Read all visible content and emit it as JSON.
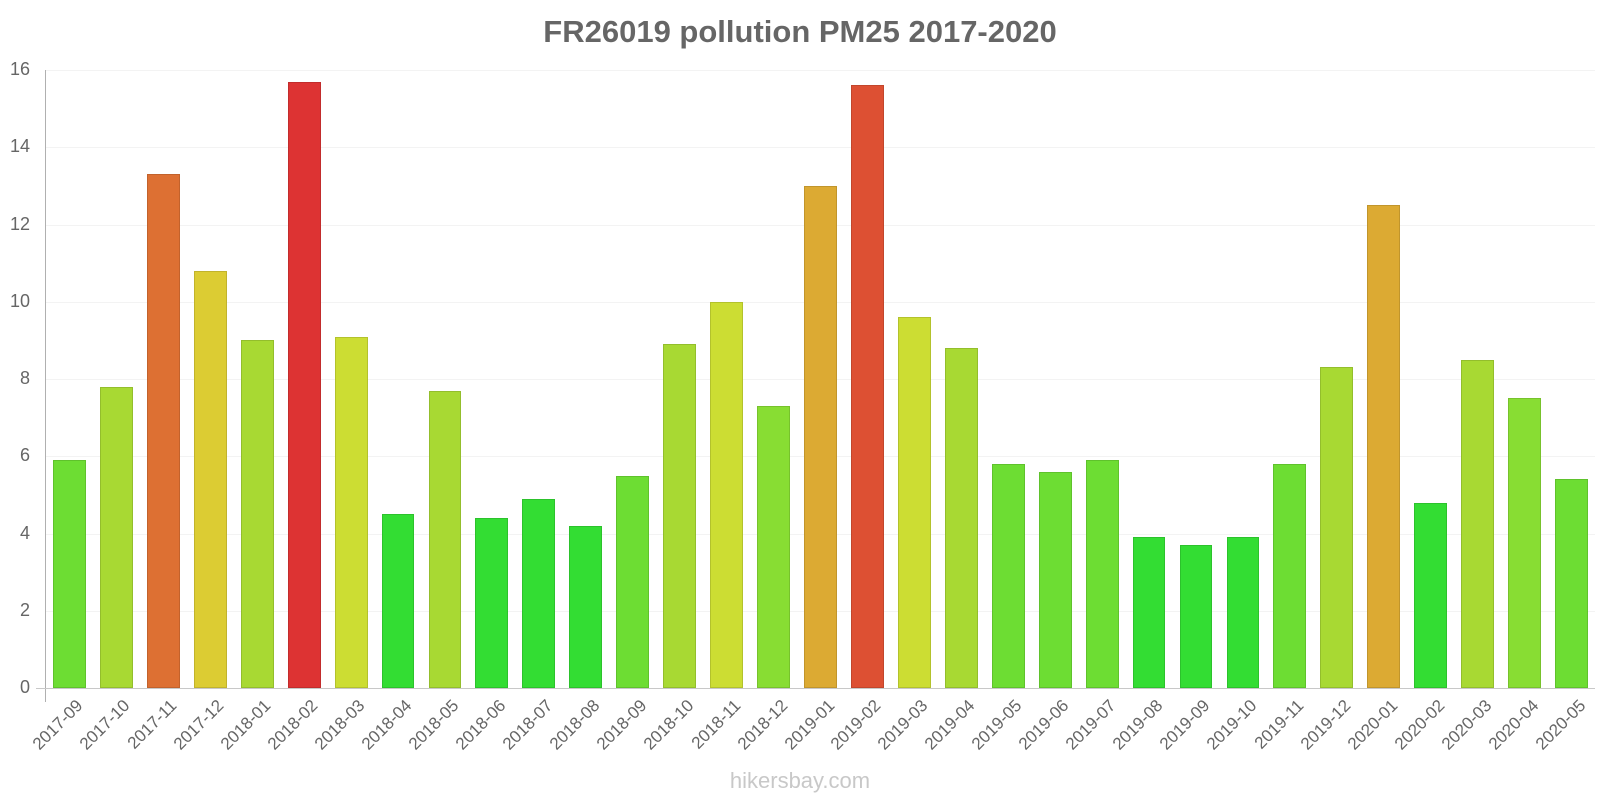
{
  "title": "FR26019 pollution PM25 2017-2020",
  "watermark": "hikersbay.com",
  "y_ticks": [
    "0",
    "2",
    "4",
    "6",
    "8",
    "10",
    "12",
    "14",
    "16"
  ],
  "chart_data": {
    "type": "bar",
    "title": "FR26019 pollution PM25 2017-2020",
    "xlabel": "",
    "ylabel": "",
    "ylim": [
      0,
      16
    ],
    "grid": true,
    "legend": null,
    "categories": [
      "2017-09",
      "2017-10",
      "2017-11",
      "2017-12",
      "2018-01",
      "2018-02",
      "2018-03",
      "2018-04",
      "2018-05",
      "2018-06",
      "2018-07",
      "2018-08",
      "2018-09",
      "2018-10",
      "2018-11",
      "2018-12",
      "2019-01",
      "2019-02",
      "2019-03",
      "2019-04",
      "2019-05",
      "2019-06",
      "2019-07",
      "2019-08",
      "2019-09",
      "2019-10",
      "2019-11",
      "2019-12",
      "2020-01",
      "2020-02",
      "2020-03",
      "2020-04",
      "2020-05"
    ],
    "values": [
      5.9,
      7.8,
      13.3,
      10.8,
      9.0,
      15.7,
      9.1,
      4.5,
      7.7,
      4.4,
      4.9,
      4.2,
      5.5,
      8.9,
      10.0,
      7.3,
      13.0,
      15.6,
      9.6,
      8.8,
      5.8,
      5.6,
      5.9,
      3.9,
      3.7,
      3.9,
      5.8,
      8.3,
      12.5,
      4.8,
      8.5,
      7.5,
      5.4
    ],
    "colors": [
      "#6ddd33",
      "#a8d933",
      "#dd7033",
      "#dccc33",
      "#a8d933",
      "#dd3333",
      "#ccdd33",
      "#33dd33",
      "#a8d933",
      "#33dd33",
      "#33dd33",
      "#33dd33",
      "#6ddd33",
      "#a8d933",
      "#ccdd33",
      "#88dd33",
      "#dcaa33",
      "#dd5033",
      "#ccdd33",
      "#a8d933",
      "#6ddd33",
      "#6ddd33",
      "#6ddd33",
      "#33dd33",
      "#33dd33",
      "#33dd33",
      "#6ddd33",
      "#a8d933",
      "#dcaa33",
      "#33dd33",
      "#a8d933",
      "#88dd33",
      "#6ddd33"
    ]
  }
}
